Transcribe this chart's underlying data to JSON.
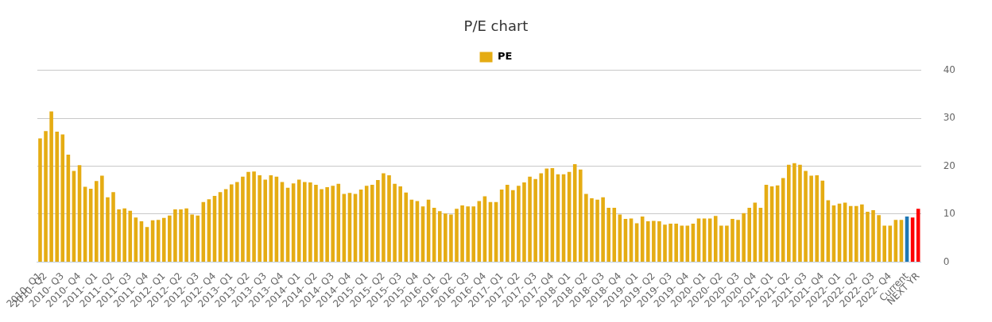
{
  "chart_data": {
    "type": "bar",
    "title": "P/E chart",
    "categories": [
      "2010- Q1",
      "2010- Q2",
      null,
      null,
      "2010- Q3",
      null,
      null,
      "2010- Q4",
      null,
      null,
      "2011- Q1",
      null,
      null,
      "2011- Q2",
      null,
      null,
      "2011- Q3",
      null,
      null,
      "2011- Q4",
      null,
      null,
      "2012- Q1",
      null,
      null,
      "2012- Q2",
      null,
      null,
      "2012- Q3",
      null,
      null,
      "2012- Q4",
      null,
      null,
      "2013- Q1",
      null,
      null,
      "2013- Q2",
      null,
      null,
      "2013- Q3",
      null,
      null,
      "2013- Q4",
      null,
      null,
      "2014- Q1",
      null,
      null,
      "2014- Q2",
      null,
      null,
      "2014- Q3",
      null,
      null,
      "2014- Q4",
      null,
      null,
      "2015- Q1",
      null,
      null,
      "2015- Q2",
      null,
      null,
      "2015- Q3",
      null,
      null,
      "2015- Q4",
      null,
      null,
      "2016- Q1",
      null,
      null,
      "2016- Q2",
      null,
      null,
      "2016- Q3",
      null,
      null,
      "2016- Q4",
      null,
      null,
      "2017- Q1",
      null,
      null,
      "2017- Q2",
      null,
      null,
      "2017- Q3",
      null,
      null,
      "2017- Q4",
      null,
      null,
      "2018- Q1",
      null,
      null,
      "2018- Q2",
      null,
      null,
      "2018- Q3",
      null,
      null,
      "2018- Q4",
      null,
      null,
      "2019- Q1",
      null,
      null,
      "2019- Q2",
      null,
      null,
      "2019- Q3",
      null,
      null,
      "2019- Q4",
      null,
      null,
      "2020- Q1",
      null,
      null,
      "2020- Q2",
      null,
      null,
      "2020- Q3",
      null,
      null,
      "2020- Q4",
      null,
      null,
      "2021- Q1",
      null,
      null,
      "2021- Q2",
      null,
      null,
      "2021- Q3",
      null,
      null,
      "2021- Q4",
      null,
      null,
      "2022- Q1",
      null,
      null,
      "2022- Q2",
      null,
      null,
      "2022- Q3",
      null,
      null,
      "2022- Q4",
      null,
      null,
      "Current",
      null,
      "NEXT YR"
    ],
    "series": [
      {
        "name": "PE",
        "color": "#e5ac13",
        "values": [
          25.8,
          27.3,
          31.4,
          27.2,
          26.6,
          22.4,
          19.0,
          20.2,
          15.7,
          15.3,
          16.9,
          18.0,
          13.5,
          14.6,
          11.0,
          11.2,
          10.7,
          9.3,
          8.5,
          7.3,
          8.7,
          8.8,
          9.2,
          9.7,
          11.0,
          11.0,
          11.2,
          9.9,
          9.7,
          12.5,
          13.1,
          13.8,
          14.6,
          15.2,
          16.2,
          16.7,
          17.8,
          18.8,
          18.9,
          18.1,
          17.2,
          18.1,
          17.8,
          16.7,
          15.5,
          16.4,
          17.2,
          16.7,
          16.6,
          16.1,
          15.2,
          15.6,
          15.9,
          16.3,
          14.2,
          14.4,
          14.2,
          15.1,
          15.9,
          16.1,
          17.1,
          18.5,
          18.1,
          16.3,
          15.8,
          14.5,
          13.0,
          12.7,
          11.6,
          13.0,
          11.3,
          10.6,
          10.1,
          9.9,
          11.1,
          11.8,
          11.6,
          11.6,
          12.7,
          13.7,
          12.5,
          12.5,
          15.1,
          16.1,
          15.0,
          15.9,
          16.6,
          17.8,
          17.3,
          18.5,
          19.5,
          19.6,
          18.3,
          18.3,
          18.8,
          20.4,
          19.3,
          14.2,
          13.3,
          13.0,
          13.5,
          11.3,
          11.3,
          9.9,
          9.0,
          9.1,
          8.1,
          9.5,
          8.5,
          8.6,
          8.5,
          7.8,
          8.0,
          8.0,
          7.6,
          7.6,
          8.0,
          9.1,
          9.1,
          9.1,
          9.6,
          7.6,
          7.6,
          9.0,
          8.8,
          10.2,
          11.3,
          12.4,
          11.3,
          16.1,
          15.8,
          16.0,
          17.5,
          20.3,
          20.6,
          20.3,
          19.0,
          18.0,
          18.1,
          17.0,
          12.9,
          11.8,
          12.2,
          12.4,
          11.7,
          11.7,
          12.0,
          10.5,
          10.8,
          9.8,
          7.6,
          7.6,
          8.8,
          8.8,
          9.5,
          9.3,
          11.1
        ],
        "colors": [
          "#e5ac13",
          "#e5ac13",
          "#e5ac13",
          "#e5ac13",
          "#e5ac13",
          "#e5ac13",
          "#e5ac13",
          "#e5ac13",
          "#e5ac13",
          "#e5ac13",
          "#e5ac13",
          "#e5ac13",
          "#e5ac13",
          "#e5ac13",
          "#e5ac13",
          "#e5ac13",
          "#e5ac13",
          "#e5ac13",
          "#e5ac13",
          "#e5ac13",
          "#e5ac13",
          "#e5ac13",
          "#e5ac13",
          "#e5ac13",
          "#e5ac13",
          "#e5ac13",
          "#e5ac13",
          "#e5ac13",
          "#e5ac13",
          "#e5ac13",
          "#e5ac13",
          "#e5ac13",
          "#e5ac13",
          "#e5ac13",
          "#e5ac13",
          "#e5ac13",
          "#e5ac13",
          "#e5ac13",
          "#e5ac13",
          "#e5ac13",
          "#e5ac13",
          "#e5ac13",
          "#e5ac13",
          "#e5ac13",
          "#e5ac13",
          "#e5ac13",
          "#e5ac13",
          "#e5ac13",
          "#e5ac13",
          "#e5ac13",
          "#e5ac13",
          "#e5ac13",
          "#e5ac13",
          "#e5ac13",
          "#e5ac13",
          "#e5ac13",
          "#e5ac13",
          "#e5ac13",
          "#e5ac13",
          "#e5ac13",
          "#e5ac13",
          "#e5ac13",
          "#e5ac13",
          "#e5ac13",
          "#e5ac13",
          "#e5ac13",
          "#e5ac13",
          "#e5ac13",
          "#e5ac13",
          "#e5ac13",
          "#e5ac13",
          "#e5ac13",
          "#e5ac13",
          "#e5ac13",
          "#e5ac13",
          "#e5ac13",
          "#e5ac13",
          "#e5ac13",
          "#e5ac13",
          "#e5ac13",
          "#e5ac13",
          "#e5ac13",
          "#e5ac13",
          "#e5ac13",
          "#e5ac13",
          "#e5ac13",
          "#e5ac13",
          "#e5ac13",
          "#e5ac13",
          "#e5ac13",
          "#e5ac13",
          "#e5ac13",
          "#e5ac13",
          "#e5ac13",
          "#e5ac13",
          "#e5ac13",
          "#e5ac13",
          "#e5ac13",
          "#e5ac13",
          "#e5ac13",
          "#e5ac13",
          "#e5ac13",
          "#e5ac13",
          "#e5ac13",
          "#e5ac13",
          "#e5ac13",
          "#e5ac13",
          "#e5ac13",
          "#e5ac13",
          "#e5ac13",
          "#e5ac13",
          "#e5ac13",
          "#e5ac13",
          "#e5ac13",
          "#e5ac13",
          "#e5ac13",
          "#e5ac13",
          "#e5ac13",
          "#e5ac13",
          "#e5ac13",
          "#e5ac13",
          "#e5ac13",
          "#e5ac13",
          "#e5ac13",
          "#e5ac13",
          "#e5ac13",
          "#e5ac13",
          "#e5ac13",
          "#e5ac13",
          "#e5ac13",
          "#e5ac13",
          "#e5ac13",
          "#e5ac13",
          "#e5ac13",
          "#e5ac13",
          "#e5ac13",
          "#e5ac13",
          "#e5ac13",
          "#e5ac13",
          "#e5ac13",
          "#e5ac13",
          "#e5ac13",
          "#e5ac13",
          "#e5ac13",
          "#e5ac13",
          "#e5ac13",
          "#e5ac13",
          "#e5ac13",
          "#e5ac13",
          "#e5ac13",
          "#e5ac13",
          "#e5ac13",
          "#e5ac13",
          "#e5ac13",
          "#1f77b4",
          "#ff0000",
          "#ff0000"
        ]
      }
    ],
    "ylim": [
      0,
      40
    ],
    "yticks": [
      0,
      10,
      20,
      30,
      40
    ],
    "grid": "y",
    "legend": "top"
  }
}
